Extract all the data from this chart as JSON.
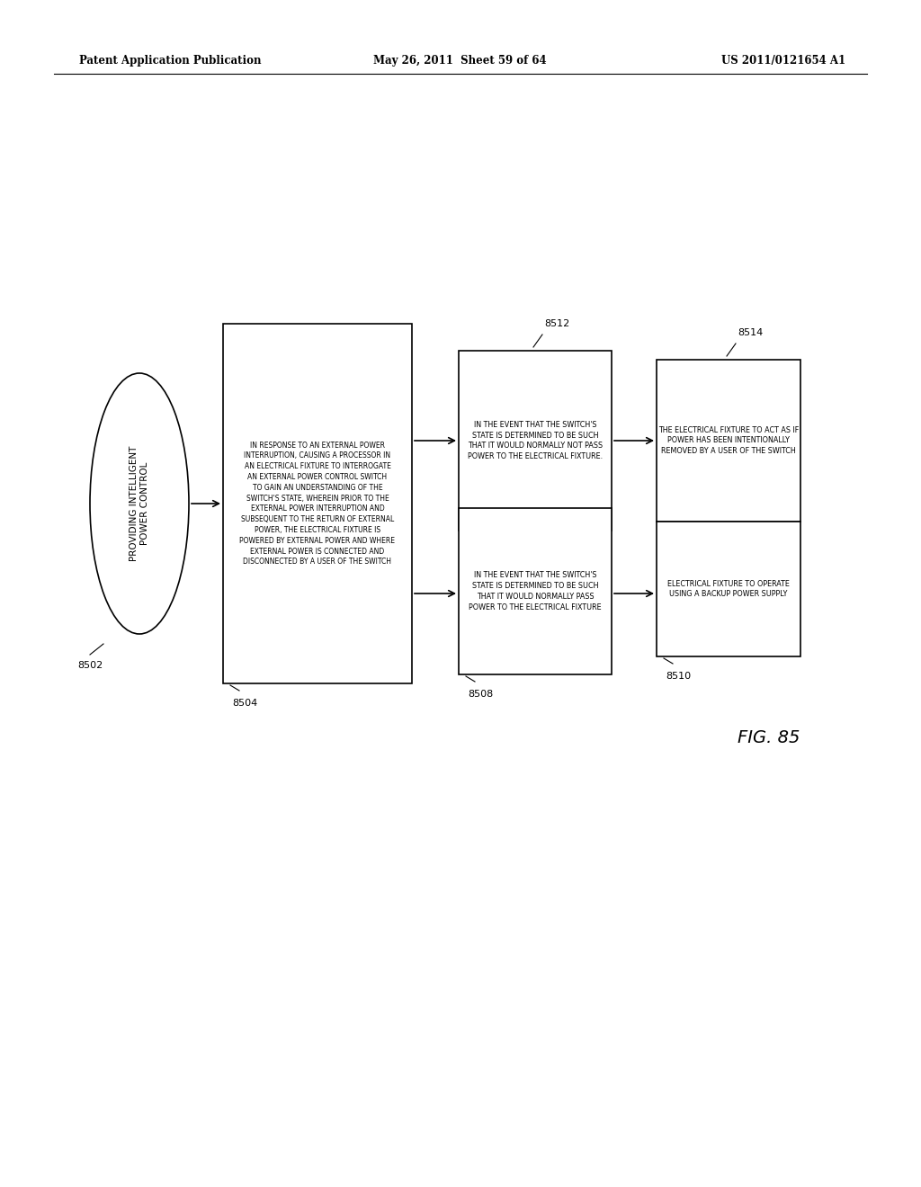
{
  "header_left": "Patent Application Publication",
  "header_mid": "May 26, 2011  Sheet 59 of 64",
  "header_right": "US 2011/0121654 A1",
  "fig_label": "FIG. 85",
  "oval_label": "8502",
  "oval_text": "PROVIDING INTELLIGENT\nPOWER CONTROL",
  "box8504_label": "8504",
  "box8504_text": "IN RESPONSE TO AN EXTERNAL POWER\nINTERRUPTION, CAUSING A PROCESSOR IN\nAN ELECTRICAL FIXTURE TO INTERROGATE\nAN EXTERNAL POWER CONTROL SWITCH\nTO GAIN AN UNDERSTANDING OF THE\nSWITCH'S STATE, WHEREIN PRIOR TO THE\nEXTERNAL POWER INTERRUPTION AND\nSUBSEQUENT TO THE RETURN OF EXTERNAL\nPOWER, THE ELECTRICAL FIXTURE IS\nPOWERED BY EXTERNAL POWER AND WHERE\nEXTERNAL POWER IS CONNECTED AND\nDISCONNECTED BY A USER OF THE SWITCH",
  "box8508_label": "8508",
  "box8508_text": "IN THE EVENT THAT THE SWITCH'S\nSTATE IS DETERMINED TO BE SUCH\nTHAT IT WOULD NORMALLY PASS\nPOWER TO THE ELECTRICAL FIXTURE",
  "box8510_label": "8510",
  "box8510_text": "ELECTRICAL FIXTURE TO OPERATE\nUSING A BACKUP POWER SUPPLY",
  "box8512_label": "8512",
  "box8512_text": "IN THE EVENT THAT THE SWITCH'S\nSTATE IS DETERMINED TO BE SUCH\nTHAT IT WOULD NORMALLY NOT PASS\nPOWER TO THE ELECTRICAL FIXTURE.",
  "box8514_label": "8514",
  "box8514_text": "THE ELECTRICAL FIXTURE TO ACT AS IF\nPOWER HAS BEEN INTENTIONALLY\nREMOVED BY A USER OF THE SWITCH",
  "bg_color": "#ffffff",
  "text_color": "#000000",
  "box_edge_color": "#000000",
  "line_color": "#000000"
}
